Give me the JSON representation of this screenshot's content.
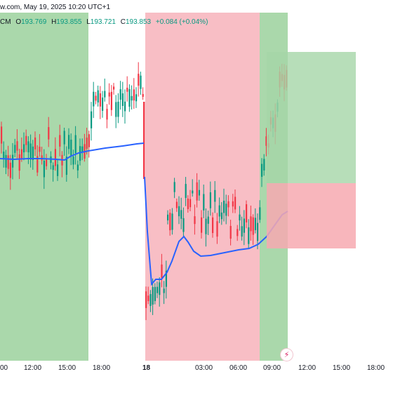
{
  "header": {
    "source": "w.com, May 19, 2025 10:20 UTC+1",
    "prefix": "CM",
    "open_label": "O",
    "open": "193.769",
    "high_label": "H",
    "high": "193.855",
    "low_label": "L",
    "low": "193.721",
    "close_label": "C",
    "close": "193.853",
    "change": "+0.084 (+0.04%)"
  },
  "x_axis": {
    "ticks": [
      "00",
      "12:00",
      "15:00",
      "18:00",
      "18",
      "03:00",
      "06:00",
      "09:00",
      "12:00",
      "15:00",
      "18:00"
    ]
  },
  "colors": {
    "up": "#089981",
    "down": "#f23645",
    "ma": "#2962ff",
    "green_zone": "#a5d6a7",
    "red_zone": "#f8bbc2",
    "profit_zone": "#a5d6a7",
    "loss_zone": "#f7a9b0",
    "header_value": "#089981",
    "header_text": "#131722"
  },
  "icons": {
    "flash": "lightning-icon"
  }
}
